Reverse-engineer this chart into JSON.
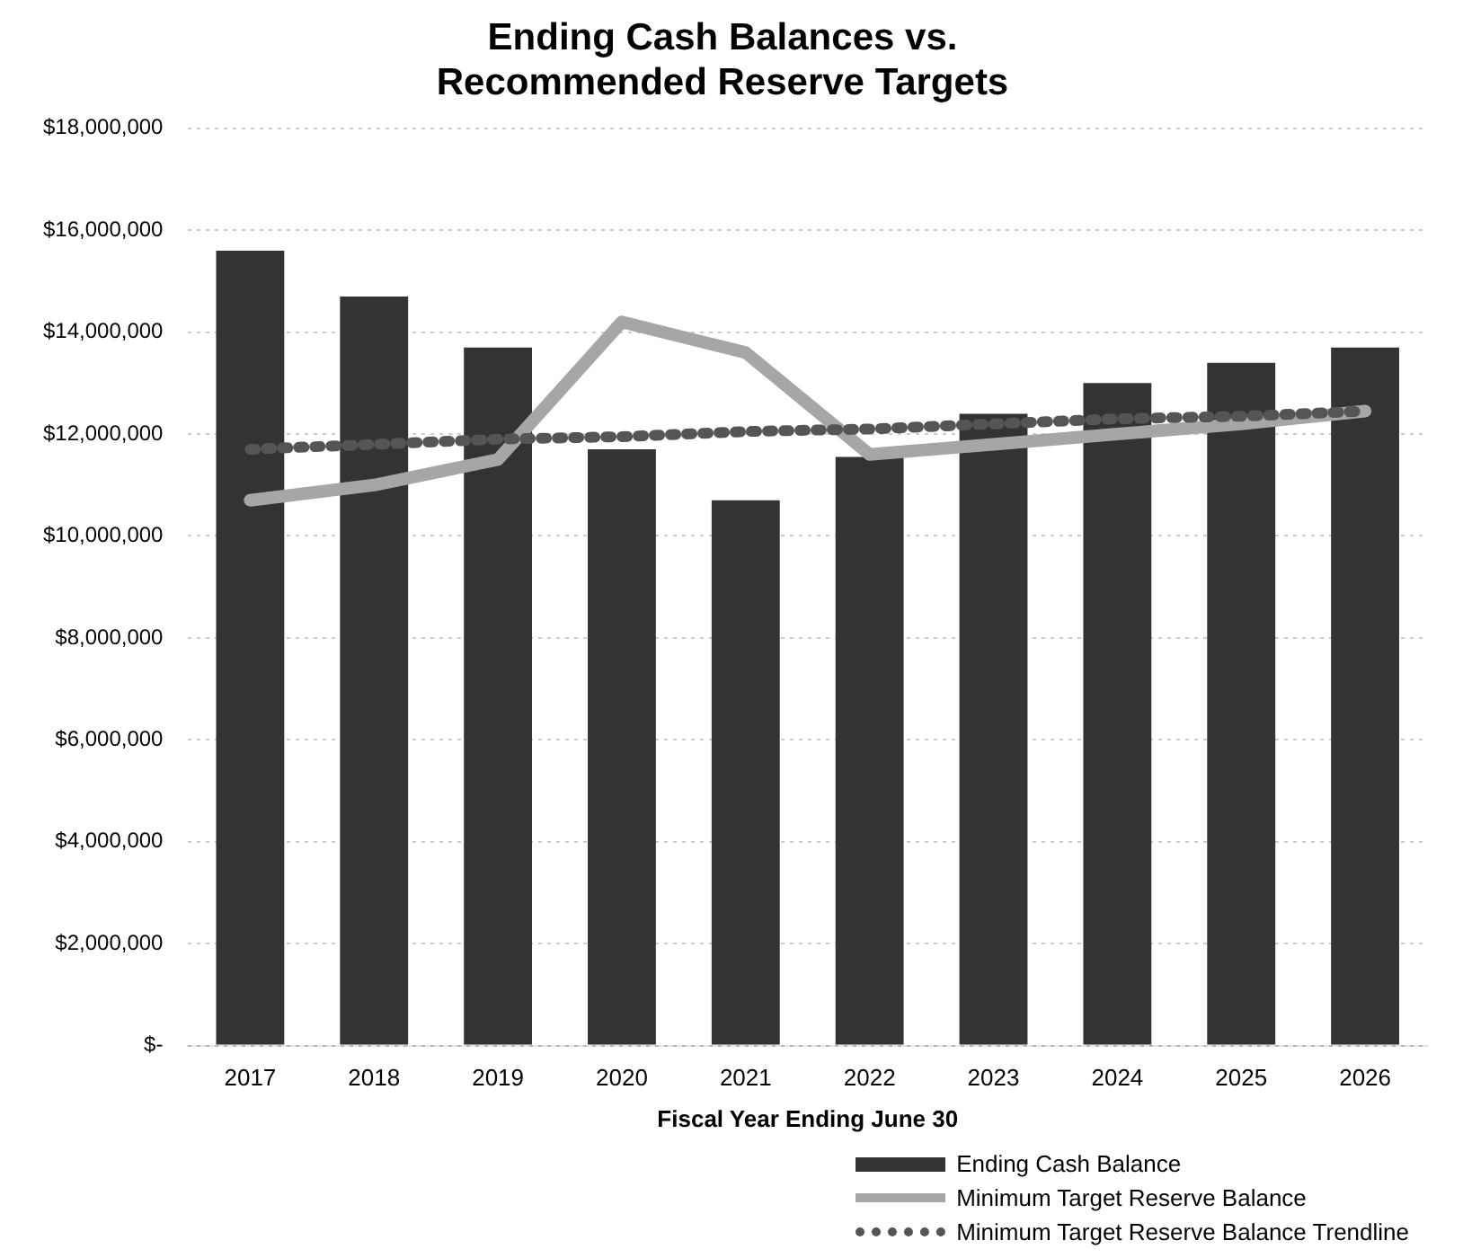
{
  "chart_data": {
    "type": "bar",
    "title": "Ending Cash Balances vs.\nRecommended Reserve Targets",
    "xlabel": "Fiscal Year Ending June 30",
    "categories": [
      "2017",
      "2018",
      "2019",
      "2020",
      "2021",
      "2022",
      "2023",
      "2024",
      "2025",
      "2026"
    ],
    "series": [
      {
        "name": "Ending Cash Balance",
        "color": "#333333",
        "values": [
          15600000,
          14700000,
          13700000,
          11700000,
          10700000,
          11550000,
          12400000,
          13000000,
          13400000,
          13700000
        ]
      },
      {
        "name": "Minimum Target Reserve Balance",
        "type": "line",
        "color": "#a6a6a6",
        "line_style": "solid",
        "values": [
          10700000,
          11000000,
          11500000,
          14200000,
          13600000,
          11600000,
          11800000,
          12000000,
          12200000,
          12450000
        ]
      },
      {
        "name": "Minimum Target Reserve Balance Trendline",
        "type": "line",
        "color": "#555555",
        "line_style": "dotted",
        "values": [
          11700000,
          11800000,
          11900000,
          11950000,
          12050000,
          12100000,
          12200000,
          12300000,
          12350000,
          12450000
        ]
      }
    ],
    "ylim": [
      0,
      18000000
    ],
    "yticks": [
      {
        "value": 0,
        "label": "$-"
      },
      {
        "value": 2000000,
        "label": "$2,000,000"
      },
      {
        "value": 4000000,
        "label": "$4,000,000"
      },
      {
        "value": 6000000,
        "label": "$6,000,000"
      },
      {
        "value": 8000000,
        "label": "$8,000,000"
      },
      {
        "value": 10000000,
        "label": "$10,000,000"
      },
      {
        "value": 12000000,
        "label": "$12,000,000"
      },
      {
        "value": 14000000,
        "label": "$14,000,000"
      },
      {
        "value": 16000000,
        "label": "$16,000,000"
      },
      {
        "value": 18000000,
        "label": "$18,000,000"
      }
    ],
    "grid": "y",
    "legend": "bottom right",
    "marker": "none"
  }
}
